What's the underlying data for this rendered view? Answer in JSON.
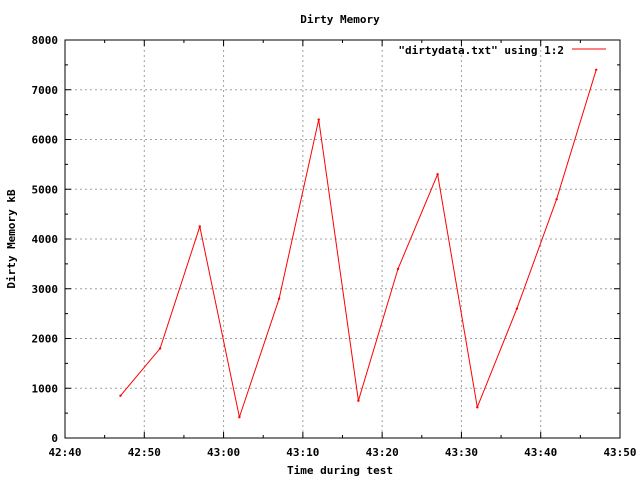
{
  "chart_data": {
    "type": "line",
    "title": "Dirty Memory",
    "xlabel": "Time during test",
    "ylabel": "Dirty Memory kB",
    "x_ticks": [
      "42:40",
      "42:50",
      "43:00",
      "43:10",
      "43:20",
      "43:30",
      "43:40",
      "43:50"
    ],
    "y_ticks": [
      "0",
      "1000",
      "2000",
      "3000",
      "4000",
      "5000",
      "6000",
      "7000",
      "8000"
    ],
    "ylim": [
      0,
      8000
    ],
    "xlim": [
      "42:40",
      "43:50"
    ],
    "grid": true,
    "legend_position": "top-right",
    "series": [
      {
        "name": "\"dirtydata.txt\" using 1:2",
        "color": "#ff0000",
        "x": [
          "42:47",
          "42:52",
          "42:57",
          "43:02",
          "43:07",
          "43:12",
          "43:17",
          "43:22",
          "43:27",
          "43:32",
          "43:37",
          "43:42",
          "43:47"
        ],
        "values": [
          850,
          1800,
          4250,
          420,
          2800,
          6400,
          750,
          3400,
          5300,
          620,
          2600,
          4800,
          7400
        ]
      }
    ]
  }
}
